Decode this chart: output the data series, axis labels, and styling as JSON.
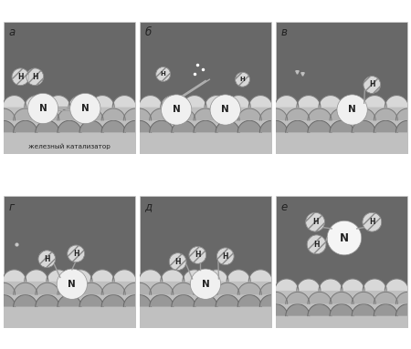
{
  "panels": [
    "а",
    "б",
    "в",
    "г",
    "д",
    "е"
  ],
  "bg_dark": "#686868",
  "bg_top": "#888888",
  "panel_border": "#cccccc",
  "catalyst_light": "#e8e8e8",
  "catalyst_mid": "#c8c8c8",
  "catalyst_dark2": "#a0a0a0",
  "catalyst_fill": "#b0b0b0",
  "N_color": "#f0f0f0",
  "H_color": "#d8d8d8",
  "bond_color": "#aaaaaa",
  "text_color": "#222222",
  "footer": "железный катализатор"
}
